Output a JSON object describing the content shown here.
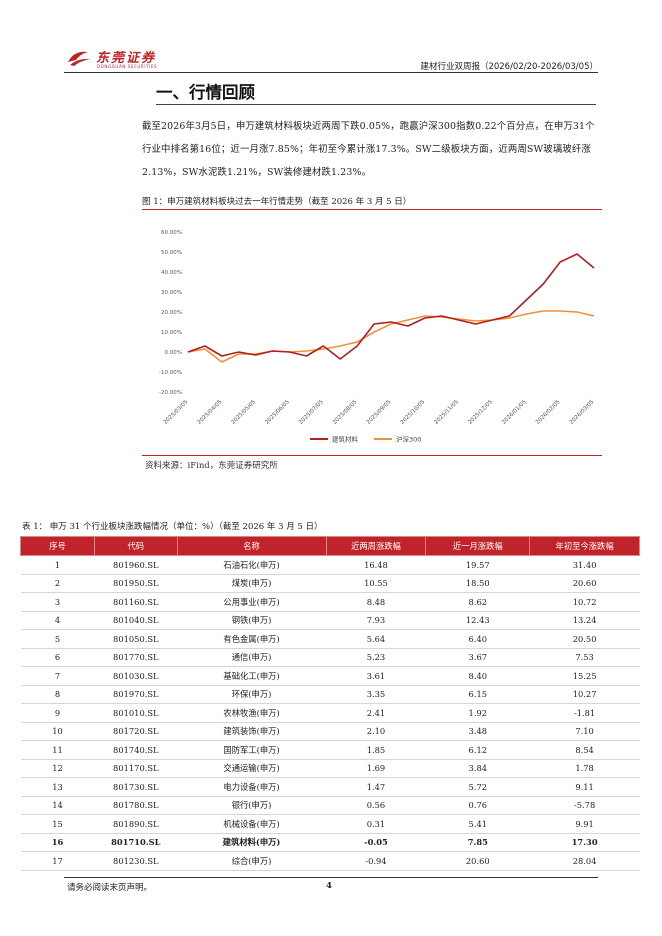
{
  "header": {
    "logo_cn": "东莞证券",
    "logo_en": "DONGGUAN SECURITIES",
    "report_title": "建材行业双周报（2026/02/20-2026/03/05）"
  },
  "section": {
    "title": "一、行情回顾",
    "paragraph": "截至2026年3月5日，申万建筑材料板块近两周下跌0.05%，跑赢沪深300指数0.22个百分点，在申万31个行业中排名第16位；近一月涨7.85%；年初至今累计涨17.3%。SW二级板块方面，近两周SW玻璃玻纤涨2.13%，SW水泥跌1.21%，SW装修建材跌1.23%。"
  },
  "figure": {
    "caption": "图 1：申万建筑材料板块过去一年行情走势（截至 2026 年 3 月 5 日）",
    "source": "资料来源：iFind，东莞证券研究所"
  },
  "chart_data": {
    "type": "line",
    "x": [
      "2025/03/05",
      "2025/03/19",
      "2025/04/05",
      "2025/04/19",
      "2025/05/05",
      "2025/05/19",
      "2025/06/05",
      "2025/06/19",
      "2025/07/05",
      "2025/07/19",
      "2025/08/05",
      "2025/08/19",
      "2025/09/05",
      "2025/09/19",
      "2025/10/05",
      "2025/10/19",
      "2025/11/05",
      "2025/11/19",
      "2025/12/05",
      "2025/12/19",
      "2026/01/05",
      "2026/01/19",
      "2026/02/05",
      "2026/02/19",
      "2026/03/05"
    ],
    "x_ticks": [
      "2025/03/05",
      "2025/04/05",
      "2025/05/05",
      "2025/06/05",
      "2025/07/05",
      "2025/08/05",
      "2025/09/05",
      "2025/10/05",
      "2025/11/05",
      "2025/12/05",
      "2026/01/05",
      "2026/02/05",
      "2026/03/05"
    ],
    "series": [
      {
        "name": "建筑材料",
        "color": "#b0201f",
        "values": [
          0.0,
          3.0,
          -2.0,
          0.0,
          -1.5,
          0.5,
          0.0,
          -2.0,
          3.0,
          -3.5,
          3.0,
          14.0,
          15.0,
          13.0,
          17.0,
          18.0,
          16.0,
          14.0,
          16.0,
          18.0,
          26.0,
          34.0,
          45.0,
          49.0,
          42.0
        ]
      },
      {
        "name": "沪深300",
        "color": "#f0913a",
        "values": [
          0.0,
          1.5,
          -5.0,
          -1.0,
          -1.0,
          0.5,
          0.0,
          0.5,
          1.5,
          3.0,
          5.0,
          10.0,
          14.0,
          16.0,
          18.0,
          17.5,
          16.5,
          15.5,
          16.0,
          17.0,
          19.0,
          20.5,
          20.5,
          20.0,
          18.0
        ]
      }
    ],
    "y_ticks": [
      "-20.00%",
      "-10.00%",
      "0.00%",
      "10.00%",
      "20.00%",
      "30.00%",
      "40.00%",
      "50.00%",
      "60.00%"
    ],
    "ylim": [
      -20,
      60
    ],
    "title": "",
    "xlabel": "",
    "ylabel": "",
    "legend": "bottom-center",
    "grid": false
  },
  "table": {
    "caption": "表 1：  申万 31 个行业板块涨跌幅情况（单位：%）（截至 2026 年 3 月 5 日）",
    "headers": [
      "序号",
      "代码",
      "名称",
      "近两周涨跌幅",
      "近一月涨跌幅",
      "年初至今涨跌幅"
    ],
    "rows": [
      [
        "1",
        "801960.SL",
        "石油石化(申万)",
        "16.48",
        "19.57",
        "31.40"
      ],
      [
        "2",
        "801950.SL",
        "煤炭(申万)",
        "10.55",
        "18.50",
        "20.60"
      ],
      [
        "3",
        "801160.SL",
        "公用事业(申万)",
        "8.48",
        "8.62",
        "10.72"
      ],
      [
        "4",
        "801040.SL",
        "钢铁(申万)",
        "7.93",
        "12.43",
        "13.24"
      ],
      [
        "5",
        "801050.SL",
        "有色金属(申万)",
        "5.64",
        "6.40",
        "20.50"
      ],
      [
        "6",
        "801770.SL",
        "通信(申万)",
        "5.23",
        "3.67",
        "7.53"
      ],
      [
        "7",
        "801030.SL",
        "基础化工(申万)",
        "3.61",
        "8.40",
        "15.25"
      ],
      [
        "8",
        "801970.SL",
        "环保(申万)",
        "3.35",
        "6.15",
        "10.27"
      ],
      [
        "9",
        "801010.SL",
        "农林牧渔(申万)",
        "2.41",
        "1.92",
        "-1.81"
      ],
      [
        "10",
        "801720.SL",
        "建筑装饰(申万)",
        "2.10",
        "3.48",
        "7.10"
      ],
      [
        "11",
        "801740.SL",
        "国防军工(申万)",
        "1.85",
        "6.12",
        "8.54"
      ],
      [
        "12",
        "801170.SL",
        "交通运输(申万)",
        "1.69",
        "3.84",
        "1.78"
      ],
      [
        "13",
        "801730.SL",
        "电力设备(申万)",
        "1.47",
        "5.72",
        "9.11"
      ],
      [
        "14",
        "801780.SL",
        "银行(申万)",
        "0.56",
        "0.76",
        "-5.78"
      ],
      [
        "15",
        "801890.SL",
        "机械设备(申万)",
        "0.31",
        "5.41",
        "9.91"
      ],
      [
        "16",
        "801710.SL",
        "建筑材料(申万)",
        "-0.05",
        "7.85",
        "17.30"
      ],
      [
        "17",
        "801230.SL",
        "综合(申万)",
        "-0.94",
        "20.60",
        "28.04"
      ]
    ],
    "highlight_row": "16"
  },
  "footer": {
    "note": "请务必阅读末页声明。",
    "page": "4"
  },
  "colors": {
    "brand_red": "#c0242a",
    "header_fill": "#c0242a"
  }
}
